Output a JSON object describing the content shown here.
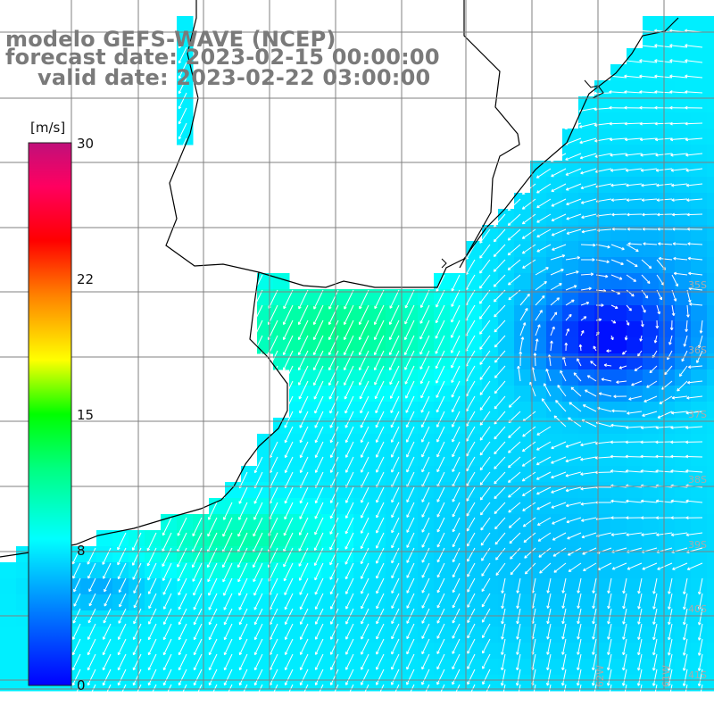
{
  "title": {
    "model": "modelo GEFS-WAVE (NCEP)",
    "forecast": "forecast date: 2023-02-15 00:00:00",
    "valid": "valid date: 2023-02-22 03:00:00"
  },
  "colorbar": {
    "unit": "[m/s]",
    "ticks": [
      "30",
      "22",
      "15",
      "8",
      "0"
    ],
    "tick_values": [
      30,
      22,
      15,
      8,
      0
    ],
    "colors": [
      "#0000ff",
      "#0064ff",
      "#00c8ff",
      "#00ffcc",
      "#00ff00",
      "#ffff00",
      "#ff7f00",
      "#ff0000",
      "#e00050",
      "#c01080"
    ]
  },
  "map": {
    "lat_labels": [
      "35S",
      "36S",
      "37S",
      "38S",
      "39S",
      "40S",
      "41S"
    ],
    "lon_labels": [
      "61W",
      "62W"
    ],
    "wind_field": "wind speed and direction at 10 m, mostly 5-10 m/s, southerly flow along coast, calm area near 36S",
    "colors": {
      "land": "#ffffff",
      "coast": "#000000",
      "grid": "#808080"
    }
  }
}
